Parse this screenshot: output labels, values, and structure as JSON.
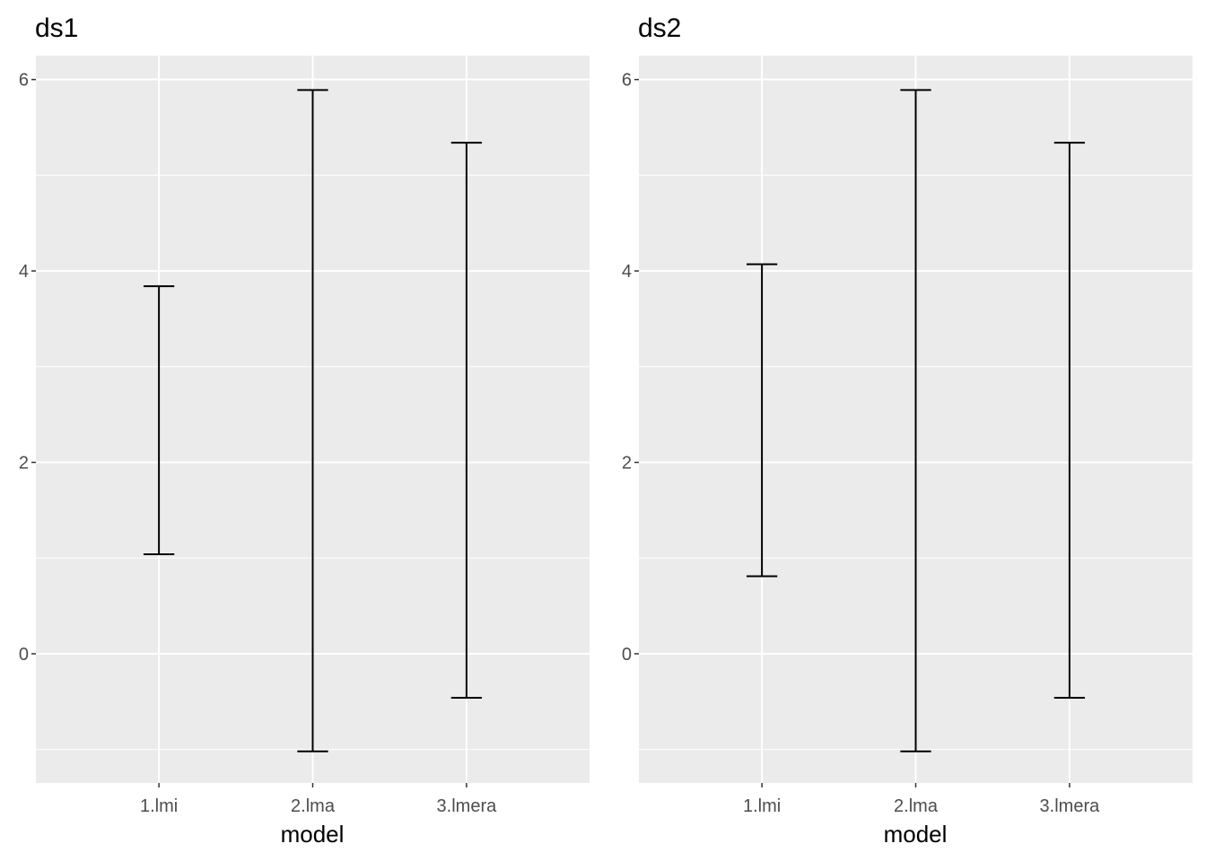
{
  "colors": {
    "panel_background": "#ebebeb",
    "grid": "#ffffff",
    "errorbar": "#000000",
    "tick_text": "#4d4d4d"
  },
  "chart_data": [
    {
      "type": "errorbar",
      "title": "ds1",
      "xlabel": "model",
      "ylabel": "",
      "categories": [
        "1.lmi",
        "2.lma",
        "3.lmera"
      ],
      "lower": [
        1.04,
        -1.02,
        -0.46
      ],
      "upper": [
        3.84,
        5.89,
        5.34
      ],
      "ylim": [
        -1.35,
        6.25
      ],
      "yticks": [
        0,
        2,
        4,
        6
      ],
      "grid": true
    },
    {
      "type": "errorbar",
      "title": "ds2",
      "xlabel": "model",
      "ylabel": "",
      "categories": [
        "1.lmi",
        "2.lma",
        "3.lmera"
      ],
      "lower": [
        0.81,
        -1.02,
        -0.46
      ],
      "upper": [
        4.07,
        5.89,
        5.34
      ],
      "ylim": [
        -1.35,
        6.25
      ],
      "yticks": [
        0,
        2,
        4,
        6
      ],
      "grid": true
    }
  ]
}
